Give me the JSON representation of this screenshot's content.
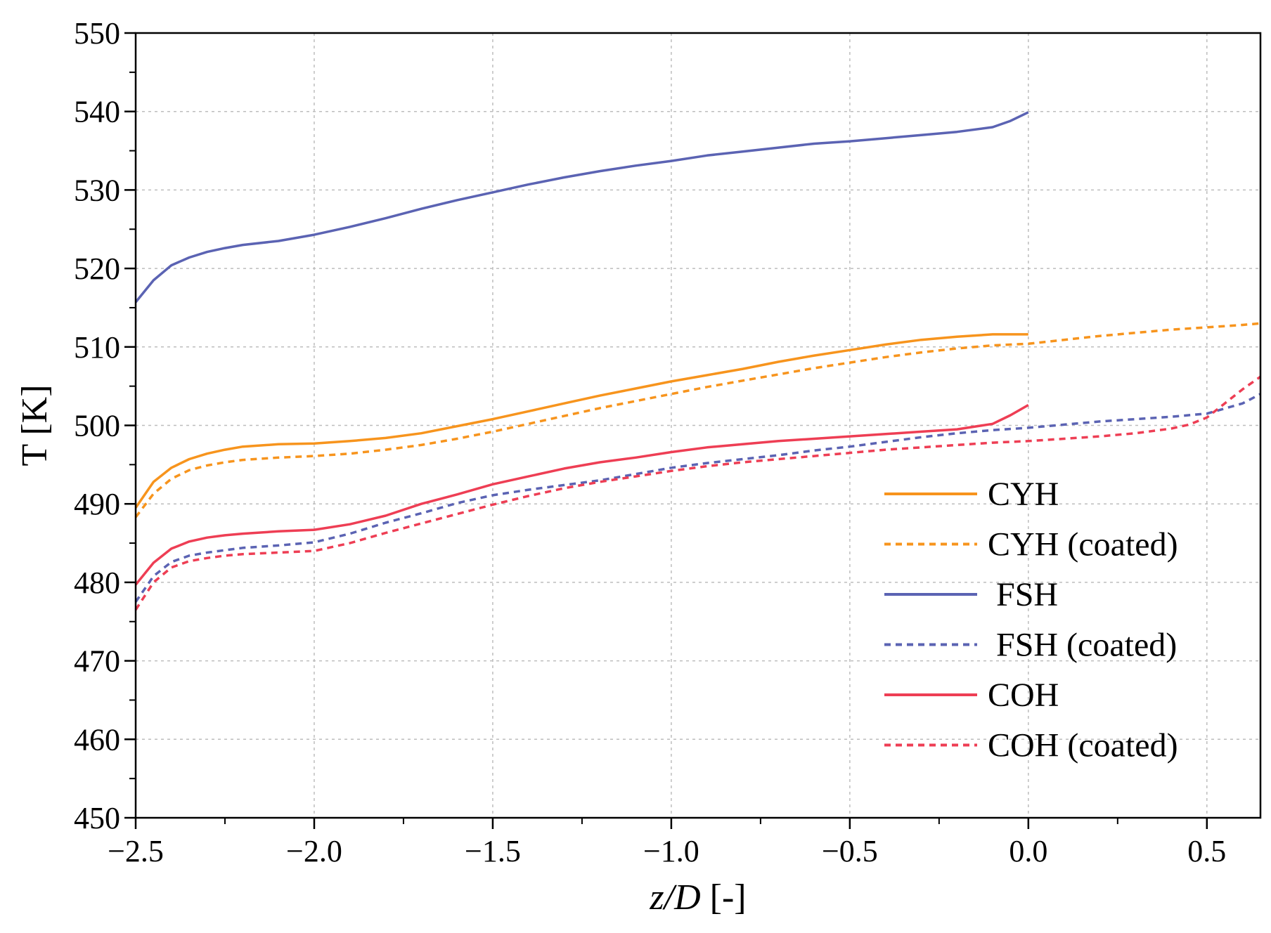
{
  "chart_data": {
    "type": "line",
    "xlabel_italic": "z/D",
    "xlabel_rest": " [-]",
    "ylabel": "T [K]",
    "xlim": [
      -2.5,
      0.65
    ],
    "ylim": [
      450,
      550
    ],
    "xticks": [
      -2.5,
      -2.0,
      -1.5,
      -1.0,
      -0.5,
      0.0,
      0.5
    ],
    "xtick_labels": [
      "−2.5",
      "−2.0",
      "−1.5",
      "−1.0",
      "−0.5",
      "0.0",
      "0.5"
    ],
    "yticks": [
      450,
      460,
      470,
      480,
      490,
      500,
      510,
      520,
      530,
      540,
      550
    ],
    "ytick_labels": [
      "450",
      "460",
      "470",
      "480",
      "490",
      "500",
      "510",
      "520",
      "530",
      "540",
      "550"
    ],
    "grid": true,
    "legend_position": "bottom-right",
    "series": [
      {
        "name": "CYH",
        "color": "#f7941d",
        "dashed": false,
        "x": [
          -2.5,
          -2.45,
          -2.4,
          -2.35,
          -2.3,
          -2.25,
          -2.2,
          -2.1,
          -2.0,
          -1.9,
          -1.8,
          -1.7,
          -1.6,
          -1.5,
          -1.4,
          -1.3,
          -1.2,
          -1.1,
          -1.0,
          -0.9,
          -0.8,
          -0.7,
          -0.6,
          -0.5,
          -0.4,
          -0.3,
          -0.2,
          -0.1,
          0.0
        ],
        "y": [
          489.5,
          492.8,
          494.6,
          495.7,
          496.4,
          496.9,
          497.3,
          497.6,
          497.7,
          498.0,
          498.4,
          499.0,
          499.9,
          500.8,
          501.8,
          502.8,
          503.8,
          504.7,
          505.6,
          506.4,
          507.2,
          508.1,
          508.9,
          509.6,
          510.3,
          510.9,
          511.3,
          511.6,
          511.6
        ]
      },
      {
        "name": "CYH (coated)",
        "color": "#f7941d",
        "dashed": true,
        "x": [
          -2.5,
          -2.45,
          -2.4,
          -2.35,
          -2.3,
          -2.25,
          -2.2,
          -2.1,
          -2.0,
          -1.9,
          -1.8,
          -1.7,
          -1.6,
          -1.5,
          -1.4,
          -1.3,
          -1.2,
          -1.1,
          -1.0,
          -0.9,
          -0.8,
          -0.7,
          -0.6,
          -0.5,
          -0.4,
          -0.3,
          -0.2,
          -0.1,
          0.0,
          0.1,
          0.2,
          0.3,
          0.4,
          0.5,
          0.6,
          0.65
        ],
        "y": [
          488.3,
          491.3,
          493.2,
          494.3,
          494.9,
          495.3,
          495.6,
          495.9,
          496.1,
          496.4,
          496.9,
          497.5,
          498.3,
          499.2,
          500.2,
          501.2,
          502.2,
          503.1,
          504.0,
          504.9,
          505.7,
          506.5,
          507.3,
          508.0,
          508.7,
          509.3,
          509.8,
          510.2,
          510.4,
          510.9,
          511.4,
          511.8,
          512.2,
          512.5,
          512.8,
          513.0
        ]
      },
      {
        "name": " FSH",
        "color": "#5b63b3",
        "dashed": false,
        "x": [
          -2.5,
          -2.45,
          -2.4,
          -2.35,
          -2.3,
          -2.25,
          -2.2,
          -2.1,
          -2.0,
          -1.9,
          -1.8,
          -1.7,
          -1.6,
          -1.5,
          -1.4,
          -1.3,
          -1.2,
          -1.1,
          -1.0,
          -0.9,
          -0.8,
          -0.7,
          -0.6,
          -0.5,
          -0.4,
          -0.3,
          -0.2,
          -0.1,
          -0.05,
          0.0
        ],
        "y": [
          515.7,
          518.5,
          520.4,
          521.4,
          522.1,
          522.6,
          523.0,
          523.5,
          524.3,
          525.3,
          526.4,
          527.6,
          528.7,
          529.7,
          530.7,
          531.6,
          532.4,
          533.1,
          533.7,
          534.4,
          534.9,
          535.4,
          535.9,
          536.2,
          536.6,
          537.0,
          537.4,
          538.0,
          538.8,
          539.9
        ]
      },
      {
        "name": " FSH (coated)",
        "color": "#5b63b3",
        "dashed": true,
        "x": [
          -2.5,
          -2.45,
          -2.4,
          -2.35,
          -2.3,
          -2.25,
          -2.2,
          -2.1,
          -2.0,
          -1.9,
          -1.8,
          -1.7,
          -1.6,
          -1.5,
          -1.4,
          -1.3,
          -1.2,
          -1.1,
          -1.0,
          -0.9,
          -0.8,
          -0.7,
          -0.6,
          -0.5,
          -0.4,
          -0.3,
          -0.2,
          -0.1,
          0.0,
          0.1,
          0.2,
          0.3,
          0.4,
          0.5,
          0.6,
          0.65
        ],
        "y": [
          477.5,
          480.8,
          482.6,
          483.4,
          483.8,
          484.1,
          484.4,
          484.7,
          485.1,
          486.2,
          487.6,
          488.8,
          490.1,
          491.1,
          491.8,
          492.4,
          493.0,
          493.8,
          494.6,
          495.2,
          495.7,
          496.2,
          496.8,
          497.3,
          497.9,
          498.5,
          499.0,
          499.4,
          499.7,
          500.1,
          500.5,
          500.8,
          501.1,
          501.5,
          502.8,
          504.0
        ]
      },
      {
        "name": "COH",
        "color": "#ee3e54",
        "dashed": false,
        "x": [
          -2.5,
          -2.45,
          -2.4,
          -2.35,
          -2.3,
          -2.25,
          -2.2,
          -2.1,
          -2.0,
          -1.9,
          -1.8,
          -1.7,
          -1.6,
          -1.5,
          -1.4,
          -1.3,
          -1.2,
          -1.1,
          -1.0,
          -0.9,
          -0.8,
          -0.7,
          -0.6,
          -0.5,
          -0.4,
          -0.3,
          -0.2,
          -0.1,
          -0.05,
          0.0
        ],
        "y": [
          479.7,
          482.5,
          484.3,
          485.2,
          485.7,
          486.0,
          486.2,
          486.5,
          486.7,
          487.4,
          488.5,
          490.0,
          491.2,
          492.5,
          493.5,
          494.5,
          495.3,
          495.9,
          496.6,
          497.2,
          497.6,
          498.0,
          498.3,
          498.6,
          498.9,
          499.2,
          499.5,
          500.2,
          501.3,
          502.6
        ]
      },
      {
        "name": "COH (coated)",
        "color": "#ee3e54",
        "dashed": true,
        "x": [
          -2.5,
          -2.45,
          -2.4,
          -2.35,
          -2.3,
          -2.25,
          -2.2,
          -2.1,
          -2.0,
          -1.9,
          -1.8,
          -1.7,
          -1.6,
          -1.5,
          -1.4,
          -1.3,
          -1.2,
          -1.1,
          -1.0,
          -0.9,
          -0.8,
          -0.7,
          -0.6,
          -0.5,
          -0.4,
          -0.3,
          -0.2,
          -0.1,
          0.0,
          0.1,
          0.2,
          0.3,
          0.4,
          0.45,
          0.5,
          0.55,
          0.6,
          0.65
        ],
        "y": [
          476.5,
          480.0,
          481.9,
          482.7,
          483.1,
          483.4,
          483.6,
          483.8,
          484.0,
          485.0,
          486.3,
          487.5,
          488.7,
          489.9,
          491.0,
          492.0,
          492.8,
          493.5,
          494.2,
          494.8,
          495.3,
          495.7,
          496.1,
          496.5,
          496.9,
          497.2,
          497.5,
          497.8,
          498.0,
          498.3,
          498.6,
          499.0,
          499.6,
          500.1,
          501.0,
          502.8,
          504.6,
          506.2
        ]
      }
    ]
  }
}
